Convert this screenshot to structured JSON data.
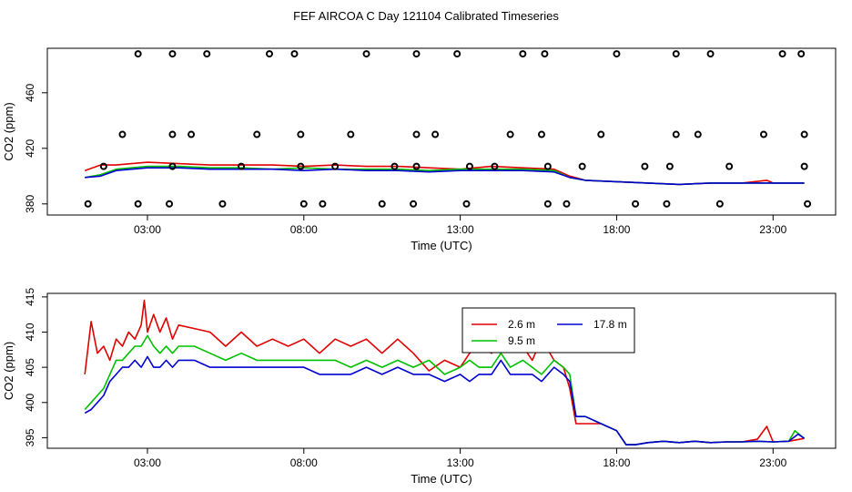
{
  "title": "FEF AIRCOA C  Day 121104  Calibrated Timeseries",
  "colors": {
    "red": "#e00000",
    "green": "#00c000",
    "blue": "#0000d0",
    "black": "#000000"
  },
  "chart_data": [
    {
      "type": "line",
      "xlabel": "Time (UTC)",
      "ylabel": "CO2 (ppm)",
      "xlim": [
        -0.2,
        25.0
      ],
      "ylim": [
        372,
        492
      ],
      "xticks": [
        3,
        8,
        13,
        18,
        23
      ],
      "xtick_labels": [
        "03:00",
        "08:00",
        "13:00",
        "18:00",
        "23:00"
      ],
      "yticks": [
        380,
        420,
        460
      ],
      "ytick_labels": [
        "380",
        "420",
        "460"
      ],
      "series": [
        {
          "name": "2.6 m",
          "color": "red",
          "x": [
            1.0,
            1.5,
            2.0,
            3.0,
            4.0,
            5.0,
            6.0,
            7.0,
            8.0,
            9.0,
            10.0,
            11.0,
            12.0,
            13.0,
            14.0,
            15.0,
            16.0,
            16.5,
            17.0,
            18.0,
            19.0,
            20.0,
            21.0,
            22.0,
            22.8,
            23.0,
            24.0
          ],
          "y": [
            404,
            408,
            408,
            410,
            409,
            408,
            408,
            408,
            407,
            408,
            407,
            407,
            406,
            405,
            407,
            406,
            405,
            400,
            397,
            396,
            395,
            394,
            395,
            395,
            397,
            395,
            395
          ]
        },
        {
          "name": "9.5 m",
          "color": "green",
          "x": [
            1.0,
            1.5,
            2.0,
            3.0,
            4.0,
            5.0,
            6.0,
            7.0,
            8.0,
            9.0,
            10.0,
            11.0,
            12.0,
            13.0,
            14.0,
            15.0,
            16.0,
            16.5,
            17.0,
            18.0,
            19.0,
            20.0,
            21.0,
            22.0,
            23.0,
            24.0
          ],
          "y": [
            399,
            401,
            405,
            407,
            407,
            406,
            406,
            405,
            406,
            405,
            405,
            405,
            404,
            405,
            405,
            405,
            404,
            399,
            397,
            396,
            395,
            394,
            395,
            395,
            395,
            395
          ]
        },
        {
          "name": "17.8 m",
          "color": "blue",
          "x": [
            1.0,
            1.5,
            2.0,
            3.0,
            4.0,
            5.0,
            6.0,
            7.0,
            8.0,
            9.0,
            10.0,
            11.0,
            12.0,
            13.0,
            14.0,
            15.0,
            16.0,
            16.5,
            17.0,
            18.0,
            19.0,
            20.0,
            21.0,
            22.0,
            23.0,
            24.0
          ],
          "y": [
            399,
            400,
            404,
            406,
            406,
            405,
            405,
            405,
            404,
            405,
            404,
            404,
            403,
            404,
            404,
            404,
            403,
            399,
            397,
            396,
            395,
            394,
            395,
            395,
            395,
            395
          ]
        }
      ],
      "flag_points": [
        {
          "x": 1.1,
          "y": 380
        },
        {
          "x": 2.7,
          "y": 380
        },
        {
          "x": 3.7,
          "y": 380
        },
        {
          "x": 5.4,
          "y": 380
        },
        {
          "x": 8.0,
          "y": 380
        },
        {
          "x": 8.6,
          "y": 380
        },
        {
          "x": 10.5,
          "y": 380
        },
        {
          "x": 11.5,
          "y": 380
        },
        {
          "x": 13.2,
          "y": 380
        },
        {
          "x": 15.8,
          "y": 380
        },
        {
          "x": 16.4,
          "y": 380
        },
        {
          "x": 18.6,
          "y": 380
        },
        {
          "x": 19.6,
          "y": 380
        },
        {
          "x": 21.3,
          "y": 380
        },
        {
          "x": 24.1,
          "y": 380
        },
        {
          "x": 1.6,
          "y": 407
        },
        {
          "x": 3.8,
          "y": 407
        },
        {
          "x": 6.0,
          "y": 407
        },
        {
          "x": 7.9,
          "y": 407
        },
        {
          "x": 9.0,
          "y": 407
        },
        {
          "x": 10.9,
          "y": 407
        },
        {
          "x": 11.6,
          "y": 407
        },
        {
          "x": 13.3,
          "y": 407
        },
        {
          "x": 14.1,
          "y": 407
        },
        {
          "x": 15.8,
          "y": 407
        },
        {
          "x": 16.9,
          "y": 407
        },
        {
          "x": 18.9,
          "y": 407
        },
        {
          "x": 19.7,
          "y": 407
        },
        {
          "x": 21.6,
          "y": 407
        },
        {
          "x": 24.0,
          "y": 407
        },
        {
          "x": 2.2,
          "y": 430
        },
        {
          "x": 3.8,
          "y": 430
        },
        {
          "x": 4.4,
          "y": 430
        },
        {
          "x": 6.5,
          "y": 430
        },
        {
          "x": 7.9,
          "y": 430
        },
        {
          "x": 9.5,
          "y": 430
        },
        {
          "x": 11.6,
          "y": 430
        },
        {
          "x": 12.2,
          "y": 430
        },
        {
          "x": 14.6,
          "y": 430
        },
        {
          "x": 15.6,
          "y": 430
        },
        {
          "x": 17.5,
          "y": 430
        },
        {
          "x": 19.9,
          "y": 430
        },
        {
          "x": 20.6,
          "y": 430
        },
        {
          "x": 22.7,
          "y": 430
        },
        {
          "x": 24.0,
          "y": 430
        },
        {
          "x": 2.7,
          "y": 488
        },
        {
          "x": 3.8,
          "y": 488
        },
        {
          "x": 4.9,
          "y": 488
        },
        {
          "x": 6.9,
          "y": 488
        },
        {
          "x": 7.7,
          "y": 488
        },
        {
          "x": 10.0,
          "y": 488
        },
        {
          "x": 11.6,
          "y": 488
        },
        {
          "x": 12.9,
          "y": 488
        },
        {
          "x": 15.0,
          "y": 488
        },
        {
          "x": 15.7,
          "y": 488
        },
        {
          "x": 18.0,
          "y": 488
        },
        {
          "x": 19.9,
          "y": 488
        },
        {
          "x": 21.0,
          "y": 488
        },
        {
          "x": 23.3,
          "y": 488
        },
        {
          "x": 23.9,
          "y": 488
        }
      ]
    },
    {
      "type": "line",
      "xlabel": "Time (UTC)",
      "ylabel": "CO2 (ppm)",
      "xlim": [
        -0.2,
        25.0
      ],
      "ylim": [
        393.5,
        415.5
      ],
      "xticks": [
        3,
        8,
        13,
        18,
        23
      ],
      "xtick_labels": [
        "03:00",
        "08:00",
        "13:00",
        "18:00",
        "23:00"
      ],
      "yticks": [
        395,
        400,
        405,
        410,
        415
      ],
      "ytick_labels": [
        "395",
        "400",
        "405",
        "410",
        "415"
      ],
      "legend": {
        "placement": "top-right",
        "entries": [
          {
            "label": "2.6 m",
            "color": "red"
          },
          {
            "label": "17.8 m",
            "color": "blue"
          },
          {
            "label": "9.5 m",
            "color": "green"
          }
        ]
      },
      "series": [
        {
          "name": "2.6 m",
          "color": "red",
          "x": [
            1.0,
            1.2,
            1.4,
            1.6,
            1.8,
            2.0,
            2.2,
            2.4,
            2.6,
            2.8,
            2.9,
            3.0,
            3.2,
            3.4,
            3.6,
            3.8,
            4.0,
            4.5,
            5.0,
            5.5,
            6.0,
            6.5,
            7.0,
            7.5,
            8.0,
            8.5,
            9.0,
            9.5,
            10.0,
            10.5,
            11.0,
            11.5,
            12.0,
            12.5,
            13.0,
            13.3,
            13.6,
            14.0,
            14.3,
            14.6,
            15.0,
            15.3,
            15.6,
            16.0,
            16.3,
            16.5,
            16.7,
            17.0,
            17.5,
            18.0,
            18.3,
            18.6,
            19.0,
            19.5,
            20.0,
            20.5,
            21.0,
            21.5,
            22.0,
            22.5,
            22.8,
            23.0,
            23.5,
            24.0
          ],
          "y": [
            404,
            411.5,
            407,
            408,
            406,
            409,
            408,
            410,
            409,
            411,
            414.5,
            410,
            412.5,
            410,
            412,
            409,
            411,
            410.5,
            410,
            408,
            410,
            408,
            409,
            408,
            409,
            407,
            409,
            408,
            409,
            407,
            409,
            407,
            404.5,
            406,
            405,
            407,
            408,
            407,
            409,
            408,
            408,
            406,
            409,
            406,
            405,
            402,
            397,
            397,
            397,
            396,
            394,
            394,
            394.3,
            394.5,
            394.3,
            394.5,
            394.3,
            394.4,
            394.4,
            394.8,
            396.6,
            394.4,
            394.5,
            394.9
          ]
        },
        {
          "name": "9.5 m",
          "color": "green",
          "x": [
            1.0,
            1.2,
            1.4,
            1.6,
            1.8,
            2.0,
            2.2,
            2.4,
            2.6,
            2.8,
            3.0,
            3.2,
            3.4,
            3.6,
            3.8,
            4.0,
            4.5,
            5.0,
            5.5,
            6.0,
            6.5,
            7.0,
            7.5,
            8.0,
            8.5,
            9.0,
            9.5,
            10.0,
            10.5,
            11.0,
            11.5,
            12.0,
            12.5,
            13.0,
            13.3,
            13.6,
            14.0,
            14.3,
            14.6,
            15.0,
            15.3,
            15.6,
            16.0,
            16.3,
            16.5,
            16.7,
            17.0,
            17.5,
            18.0,
            18.3,
            18.6,
            19.0,
            19.5,
            20.0,
            20.5,
            21.0,
            21.5,
            22.0,
            22.5,
            23.0,
            23.5,
            23.7,
            24.0
          ],
          "y": [
            399,
            400,
            401,
            402,
            404,
            406,
            406,
            407,
            408,
            408,
            409.5,
            408,
            407,
            408,
            407,
            408,
            408,
            407,
            406,
            407,
            406,
            406,
            406,
            406,
            406,
            406,
            405,
            406,
            405,
            406,
            405,
            406,
            404,
            405,
            406,
            405,
            405,
            407,
            405,
            406,
            405,
            404,
            406,
            405,
            404,
            398,
            398,
            397,
            396,
            394,
            394,
            394.3,
            394.5,
            394.3,
            394.5,
            394.3,
            394.4,
            394.4,
            394.5,
            394.4,
            394.5,
            396,
            394.9
          ]
        },
        {
          "name": "17.8 m",
          "color": "blue",
          "x": [
            1.0,
            1.2,
            1.4,
            1.6,
            1.8,
            2.0,
            2.2,
            2.4,
            2.6,
            2.8,
            3.0,
            3.2,
            3.4,
            3.6,
            3.8,
            4.0,
            4.5,
            5.0,
            5.5,
            6.0,
            6.5,
            7.0,
            7.5,
            8.0,
            8.5,
            9.0,
            9.5,
            10.0,
            10.5,
            11.0,
            11.5,
            12.0,
            12.5,
            13.0,
            13.3,
            13.6,
            14.0,
            14.3,
            14.6,
            15.0,
            15.3,
            15.6,
            16.0,
            16.3,
            16.5,
            16.7,
            17.0,
            17.5,
            18.0,
            18.3,
            18.6,
            19.0,
            19.5,
            20.0,
            20.5,
            21.0,
            21.5,
            22.0,
            22.5,
            23.0,
            23.5,
            23.8,
            24.0
          ],
          "y": [
            398.5,
            399,
            400,
            401,
            403,
            404,
            405,
            405,
            406,
            405,
            406.5,
            405,
            405,
            406,
            405,
            406,
            406,
            405,
            405,
            405,
            405,
            405,
            405,
            405,
            404,
            404,
            404,
            405,
            404,
            405,
            404,
            404,
            403,
            404,
            403,
            404,
            404,
            406,
            404,
            404,
            404,
            403,
            405,
            404,
            403,
            398,
            398,
            397,
            396,
            394,
            394,
            394.3,
            394.5,
            394.3,
            394.5,
            394.3,
            394.4,
            394.4,
            394.5,
            394.4,
            394.5,
            395.5,
            394.9
          ]
        }
      ]
    }
  ]
}
